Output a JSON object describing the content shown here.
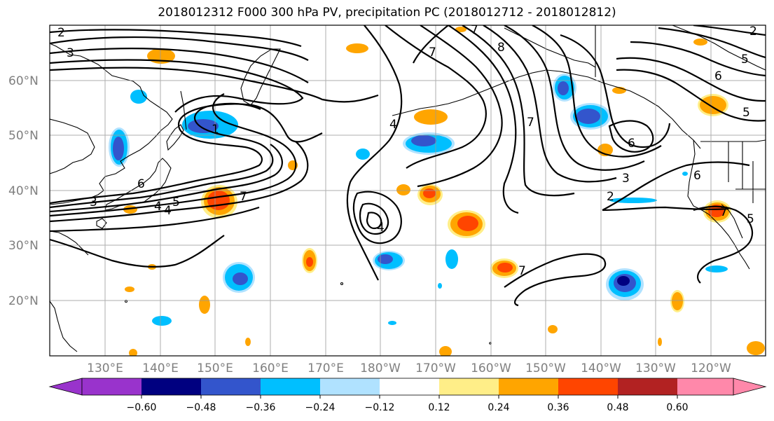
{
  "title": "2018012312 F000 300 hPa PV, precipitation PC (2018012712 - 2018012812)",
  "map": {
    "lon_ticks": [
      "130°E",
      "140°E",
      "150°E",
      "160°E",
      "170°E",
      "180°W",
      "170°W",
      "160°W",
      "150°W",
      "140°W",
      "130°W",
      "120°W"
    ],
    "lat_ticks": [
      "60°N",
      "50°N",
      "40°N",
      "30°N",
      "20°N"
    ],
    "lon_range": [
      120,
      250
    ],
    "lat_range": [
      10,
      70
    ],
    "grid": true
  },
  "contour_labels": [
    "2",
    "3",
    "8",
    "4",
    "7",
    "5",
    "6",
    "5",
    "3",
    "6",
    "2",
    "4",
    "4",
    "5",
    "7",
    "6",
    "4",
    "7",
    "7",
    "7",
    "1",
    "3",
    "2",
    "5",
    "6",
    "7"
  ],
  "colorbar": {
    "ticks": [
      "−0.60",
      "−0.48",
      "−0.36",
      "−0.24",
      "−0.12",
      "0.12",
      "0.24",
      "0.36",
      "0.48",
      "0.60"
    ],
    "colors": [
      "#9933cc",
      "#000080",
      "#3355cc",
      "#00bfff",
      "#b0e2ff",
      "#ffffff",
      "#ffee88",
      "#ffa500",
      "#ff4500",
      "#b22222",
      "#ff88aa"
    ]
  }
}
